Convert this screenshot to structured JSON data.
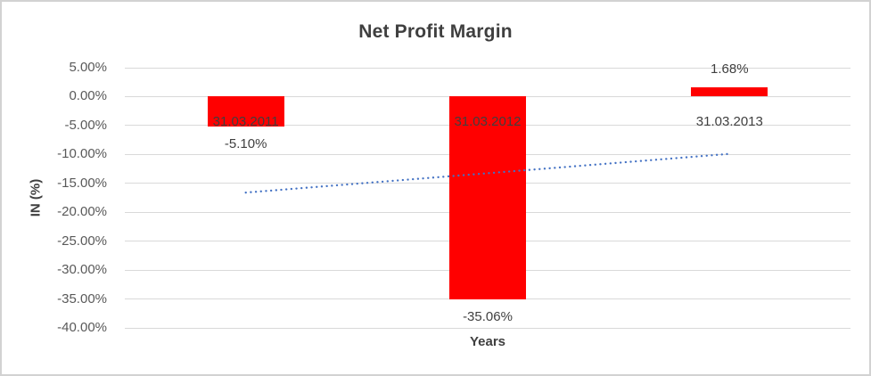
{
  "chart_data": {
    "type": "bar",
    "title": "Net Profit Margin",
    "xlabel": "Years",
    "ylabel": "IN (%)",
    "categories": [
      "31.03.2011",
      "31.03.2012",
      "31.03.2013"
    ],
    "values": [
      -5.1,
      -35.06,
      1.68
    ],
    "data_labels": [
      "-5.10%",
      "-35.06%",
      "1.68%"
    ],
    "bar_color": "#ff0000",
    "ylim": [
      -40,
      5
    ],
    "y_tick_step": 5,
    "y_tick_labels": [
      "5.00%",
      "0.00%",
      "-5.00%",
      "-10.00%",
      "-15.00%",
      "-20.00%",
      "-25.00%",
      "-30.00%",
      "-35.00%",
      "-40.00%"
    ],
    "grid": true,
    "gridline_color": "#d9d9d9",
    "legend": "none",
    "trendline": {
      "type": "linear",
      "style": "dotted",
      "color": "#4472c4",
      "start_value": -16.6,
      "end_value": -9.9
    },
    "title_color": "#3f3f3f",
    "tick_color": "#595959",
    "label_color": "#404040"
  }
}
